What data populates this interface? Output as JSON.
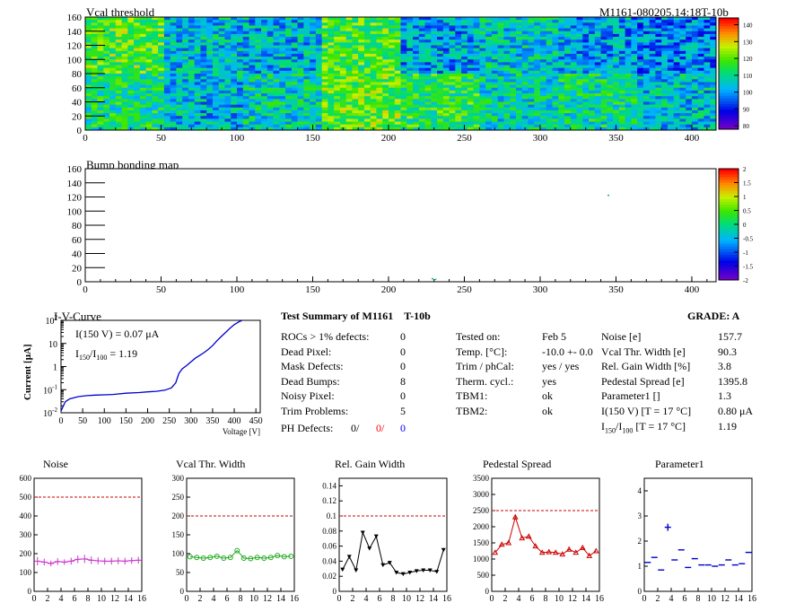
{
  "header": {
    "map1_title": "Vcal threshold",
    "module_id": "M1161-080205.14:18T-10b",
    "map2_title": "Bump bonding map"
  },
  "map1": {
    "x_ticks": [
      "0",
      "50",
      "100",
      "150",
      "200",
      "250",
      "300",
      "350",
      "400"
    ],
    "x_tick_values": [
      0,
      50,
      100,
      150,
      200,
      250,
      300,
      350,
      400
    ],
    "y_ticks": [
      "0",
      "20",
      "40",
      "60",
      "80",
      "100",
      "120",
      "140",
      "160"
    ],
    "y_tick_values": [
      0,
      20,
      40,
      60,
      80,
      100,
      120,
      140,
      160
    ],
    "xlim": [
      0,
      416
    ],
    "ylim": [
      0,
      160
    ],
    "palette_labels": [
      "140",
      "130",
      "120",
      "110",
      "100",
      "90",
      "80"
    ],
    "palette_values": [
      140,
      130,
      120,
      110,
      100,
      90,
      80
    ],
    "palette_range": [
      78,
      144
    ]
  },
  "map2": {
    "x_ticks": [
      "0",
      "50",
      "100",
      "150",
      "200",
      "250",
      "300",
      "350",
      "400"
    ],
    "x_tick_values": [
      0,
      50,
      100,
      150,
      200,
      250,
      300,
      350,
      400
    ],
    "y_ticks": [
      "0",
      "20",
      "40",
      "60",
      "80",
      "100",
      "120",
      "140",
      "160"
    ],
    "y_tick_values": [
      0,
      20,
      40,
      60,
      80,
      100,
      120,
      140,
      160
    ],
    "xlim": [
      0,
      416
    ],
    "ylim": [
      0,
      160
    ],
    "palette_labels": [
      "2",
      "1.5",
      "1",
      "0.5",
      "0",
      "-0.5",
      "-1",
      "-1.5",
      "-2"
    ],
    "palette_values": [
      2,
      1.5,
      1,
      0.5,
      0,
      -0.5,
      -1,
      -1.5,
      -2
    ],
    "palette_range": [
      -2,
      2
    ],
    "marks": [
      {
        "x": 345,
        "y": 122
      },
      {
        "x": 229,
        "y": 4
      },
      {
        "x": 231,
        "y": 3
      }
    ]
  },
  "iv": {
    "title": "I-V-Curve",
    "ylabel": "Current [μA]",
    "xlabel": "Voltage [V]",
    "note1": "I(150 V) = 0.07 μA",
    "note2": "I",
    "note2_sub1": "150",
    "note2_mid": "/I",
    "note2_sub2": "100",
    "note2_val": " =  1.19",
    "x_ticks": [
      "0",
      "50",
      "100",
      "150",
      "200",
      "250",
      "300",
      "350",
      "400",
      "450"
    ],
    "x_tick_values": [
      0,
      50,
      100,
      150,
      200,
      250,
      300,
      350,
      400,
      450
    ],
    "y_ticks": [
      {
        "base": "10",
        "exp": "-2",
        "value": -2
      },
      {
        "base": "10",
        "exp": "-1",
        "value": -1
      },
      {
        "base": "1",
        "exp": "",
        "value": 0
      },
      {
        "base": "10",
        "exp": "",
        "value": 1
      },
      {
        "base": "10",
        "exp": "2",
        "value": 2
      }
    ],
    "xlim": [
      0,
      460
    ],
    "ylog_lim": [
      -2,
      2
    ],
    "points": [
      [
        0,
        0.012
      ],
      [
        10,
        0.03
      ],
      [
        20,
        0.04
      ],
      [
        40,
        0.05
      ],
      [
        60,
        0.055
      ],
      [
        80,
        0.058
      ],
      [
        100,
        0.06
      ],
      [
        120,
        0.062
      ],
      [
        150,
        0.07
      ],
      [
        180,
        0.075
      ],
      [
        200,
        0.08
      ],
      [
        220,
        0.085
      ],
      [
        240,
        0.095
      ],
      [
        255,
        0.12
      ],
      [
        265,
        0.2
      ],
      [
        272,
        0.5
      ],
      [
        280,
        0.8
      ],
      [
        290,
        1.1
      ],
      [
        300,
        1.6
      ],
      [
        310,
        2.3
      ],
      [
        320,
        3.0
      ],
      [
        330,
        4.0
      ],
      [
        340,
        5.5
      ],
      [
        350,
        8
      ],
      [
        360,
        13
      ],
      [
        370,
        20
      ],
      [
        380,
        30
      ],
      [
        390,
        45
      ],
      [
        400,
        65
      ],
      [
        410,
        85
      ],
      [
        418,
        100
      ]
    ]
  },
  "summary": {
    "title": "Test Summary of M1161",
    "title_tag": "T-10b",
    "grade": "GRADE:  A",
    "left": [
      {
        "label": "ROCs > 1% defects:",
        "value": "0"
      },
      {
        "label": "Dead Pixel:",
        "value": "0"
      },
      {
        "label": "Mask Defects:",
        "value": "0"
      },
      {
        "label": "Dead Bumps:",
        "value": "8"
      },
      {
        "label": "Noisy Pixel:",
        "value": "0"
      },
      {
        "label": "Trim Problems:",
        "value": "5"
      }
    ],
    "ph_label": "PH Defects:",
    "ph_values": [
      "0/",
      "0/",
      "0"
    ],
    "ph_colors": [
      "#000000",
      "#ff0000",
      "#0000ff"
    ],
    "mid": [
      {
        "label": "Tested on:",
        "value": "Feb 5"
      },
      {
        "label": "Temp. [°C]:",
        "value": "-10.0 +- 0.0"
      },
      {
        "label": "Trim / phCal:",
        "value": "yes / yes"
      },
      {
        "label": "Therm. cycl.:",
        "value": "yes"
      },
      {
        "label": "TBM1:",
        "value": "ok"
      },
      {
        "label": "TBM2:",
        "value": "ok"
      }
    ],
    "right": [
      {
        "label": "Noise [e]",
        "value": "157.7"
      },
      {
        "label": "Vcal Thr. Width [e]",
        "value": "90.3"
      },
      {
        "label": "Rel. Gain Width [%]",
        "value": "3.8"
      },
      {
        "label": "Pedestal Spread [e]",
        "value": "1395.8"
      },
      {
        "label": "Parameter1 []",
        "value": "1.3"
      },
      {
        "label": "I(150 V) [T = 17 °C]",
        "value": "0.80 μA"
      }
    ],
    "ratio_label_main": "I",
    "ratio_sub1": "150",
    "ratio_mid": "/I",
    "ratio_sub2": "100",
    "ratio_tail": "  [T = 17 °C]",
    "ratio_value": "1.19"
  },
  "chart_data": [
    {
      "type": "line",
      "title": "Noise",
      "x": [
        0,
        1,
        2,
        3,
        4,
        5,
        6,
        7,
        8,
        9,
        10,
        11,
        12,
        13,
        14,
        15
      ],
      "values": [
        160,
        155,
        148,
        158,
        155,
        160,
        170,
        172,
        165,
        162,
        160,
        160,
        162,
        160,
        163,
        165
      ],
      "errors": [
        22,
        18,
        15,
        18,
        15,
        18,
        20,
        22,
        20,
        18,
        18,
        18,
        18,
        18,
        18,
        18
      ],
      "ylim": [
        0,
        600
      ],
      "yticks": [
        0,
        100,
        200,
        300,
        400,
        500,
        600
      ],
      "threshold": 500,
      "color": "#cc33cc",
      "marker": "bar"
    },
    {
      "type": "line",
      "title": "Vcal Thr. Width",
      "x": [
        0,
        1,
        2,
        3,
        4,
        5,
        6,
        7,
        8,
        9,
        10,
        11,
        12,
        13,
        14,
        15
      ],
      "values": [
        92,
        90,
        88,
        90,
        93,
        88,
        90,
        108,
        88,
        87,
        90,
        88,
        90,
        95,
        92,
        93
      ],
      "ylim": [
        0,
        300
      ],
      "yticks": [
        0,
        50,
        100,
        150,
        200,
        250,
        300
      ],
      "threshold": 200,
      "color": "#22aa22",
      "marker": "circle"
    },
    {
      "type": "line",
      "title": "Rel. Gain Width",
      "x": [
        0,
        1,
        2,
        3,
        4,
        5,
        6,
        7,
        8,
        9,
        10,
        11,
        12,
        13,
        14,
        15
      ],
      "values": [
        0.029,
        0.046,
        0.028,
        0.078,
        0.057,
        0.073,
        0.035,
        0.038,
        0.025,
        0.023,
        0.025,
        0.027,
        0.028,
        0.028,
        0.026,
        0.055
      ],
      "ylim": [
        0,
        0.15
      ],
      "yticks": [
        0,
        0.02,
        0.04,
        0.06,
        0.08,
        0.1,
        0.12,
        0.14
      ],
      "threshold": 0.1,
      "color": "#000000",
      "marker": "triangle-down"
    },
    {
      "type": "line",
      "title": "Pedestal Spread",
      "x": [
        0,
        1,
        2,
        3,
        4,
        5,
        6,
        7,
        8,
        9,
        10,
        11,
        12,
        13,
        14,
        15
      ],
      "values": [
        1200,
        1450,
        1500,
        2300,
        1650,
        1700,
        1400,
        1200,
        1220,
        1200,
        1150,
        1300,
        1200,
        1350,
        1100,
        1250
      ],
      "ylim": [
        0,
        3500
      ],
      "yticks": [
        0,
        500,
        1000,
        1500,
        2000,
        2500,
        3000,
        3500
      ],
      "threshold": 2500,
      "color": "#cc0000",
      "marker": "triangle-up"
    },
    {
      "type": "scatter",
      "title": "Parameter1",
      "x": [
        0,
        1,
        2,
        3,
        4,
        5,
        6,
        7,
        8,
        9,
        10,
        11,
        12,
        13,
        14,
        15
      ],
      "values": [
        1.15,
        1.35,
        0.85,
        2.55,
        1.25,
        1.65,
        0.95,
        1.3,
        1.05,
        1.05,
        1.0,
        1.05,
        1.25,
        1.05,
        1.1,
        1.55
      ],
      "ylim": [
        0,
        4.5
      ],
      "yticks": [
        0,
        1,
        2,
        3,
        4
      ],
      "color": "#0000cc",
      "marker": "hbar"
    }
  ],
  "small_xticks": [
    "0",
    "2",
    "4",
    "6",
    "8",
    "10",
    "12",
    "14",
    "16"
  ],
  "small_xtick_values": [
    0,
    2,
    4,
    6,
    8,
    10,
    12,
    14,
    16
  ],
  "colors": {
    "map_background": "#ffffff",
    "threshold_line": "#cc0000",
    "iv_line": "#0000cc"
  }
}
